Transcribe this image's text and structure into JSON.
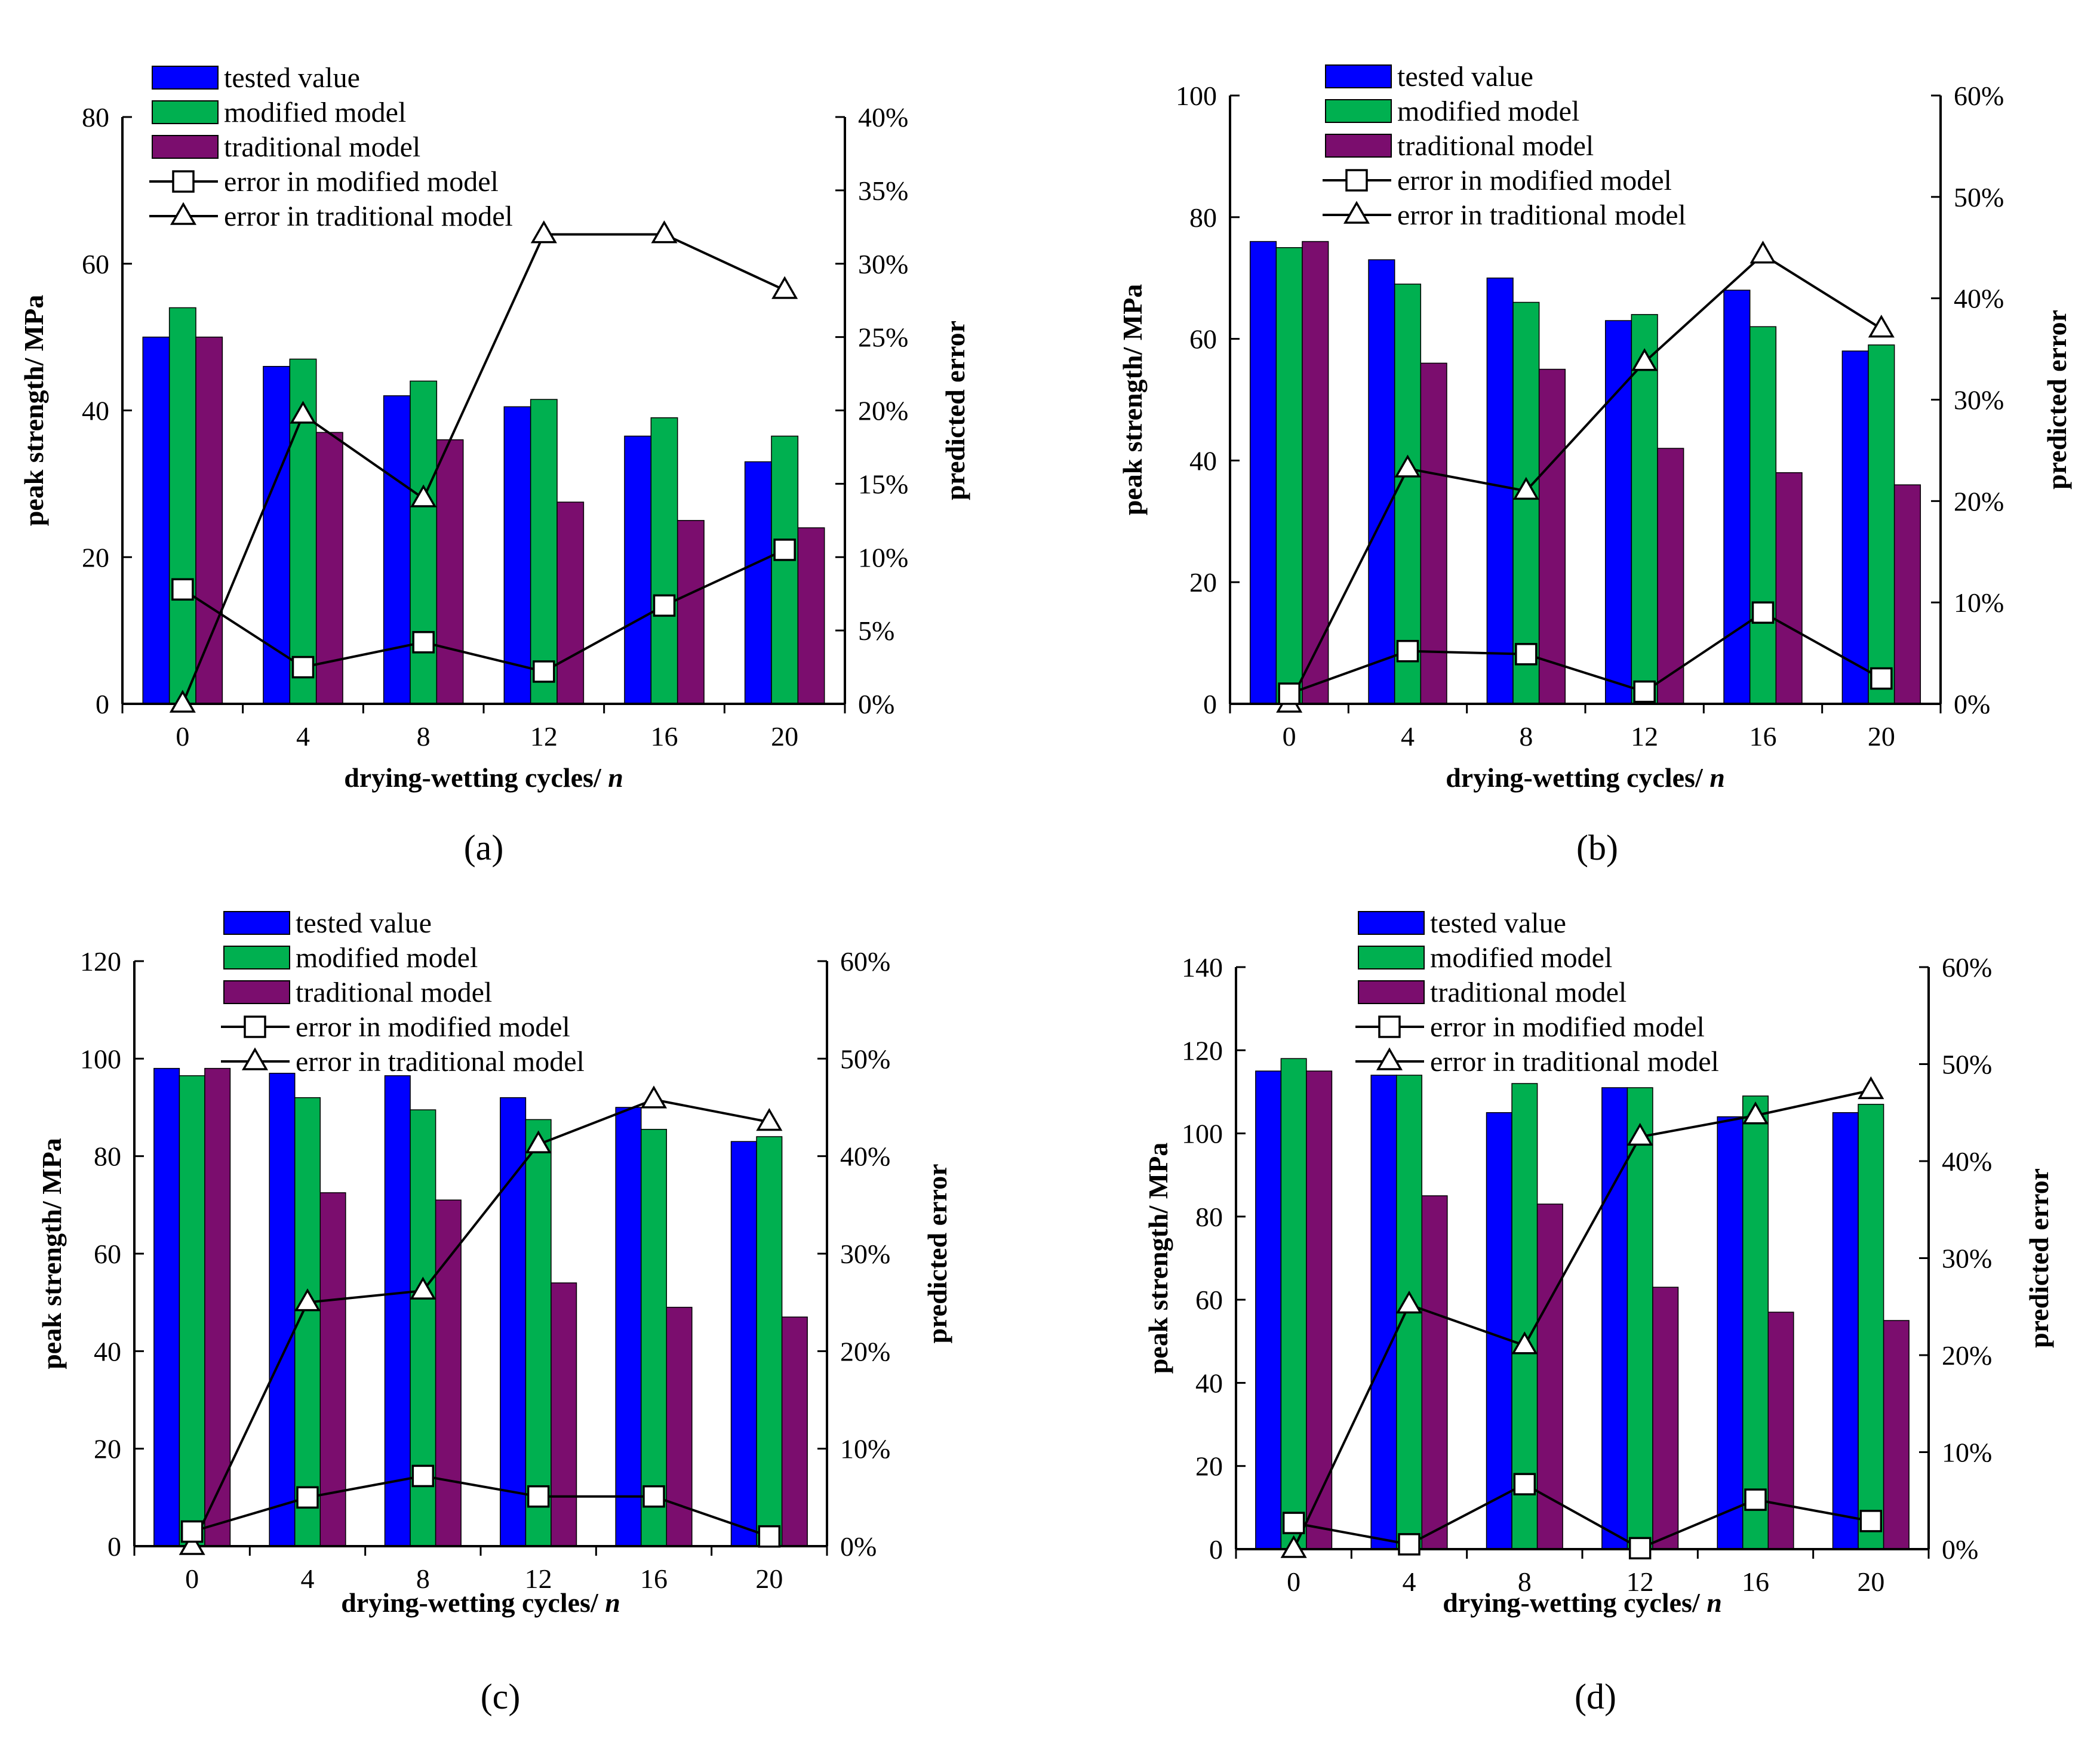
{
  "colors": {
    "tested": "#0000ff",
    "modified": "#00b050",
    "traditional": "#7b0d6e",
    "line": "#000000"
  },
  "legend_labels": {
    "tested": "tested value",
    "modified": "modified model",
    "traditional": "traditional model",
    "err_modified": "error in modified model",
    "err_traditional": "error in traditional model"
  },
  "axis_titles": {
    "x_prefix": "drying-wetting cycles/ ",
    "x_var": "n",
    "y_left": "peak strength/ MPa",
    "y_right": "predicted error"
  },
  "chart_data": [
    {
      "label": "(a)",
      "type": "bar+line",
      "categories": [
        "0",
        "4",
        "8",
        "12",
        "16",
        "20"
      ],
      "ylim": [
        0,
        80
      ],
      "yticks": [
        0,
        20,
        40,
        60,
        80
      ],
      "y2lim": [
        0,
        40
      ],
      "y2ticks": [
        "0%",
        "5%",
        "10%",
        "15%",
        "20%",
        "25%",
        "30%",
        "35%",
        "40%"
      ],
      "series": [
        {
          "name": "tested value",
          "values": [
            50,
            46,
            42,
            40.5,
            36.5,
            33
          ]
        },
        {
          "name": "modified model",
          "values": [
            54,
            47,
            44,
            41.5,
            39,
            36.5
          ]
        },
        {
          "name": "traditional model",
          "values": [
            50,
            37,
            36,
            27.5,
            25,
            24
          ]
        }
      ],
      "errors": [
        {
          "name": "error in modified model",
          "values": [
            7.8,
            2.5,
            4.2,
            2.2,
            6.7,
            10.5
          ]
        },
        {
          "name": "error in traditional model",
          "values": [
            0,
            19.7,
            14,
            32,
            32,
            28.2
          ]
        }
      ]
    },
    {
      "label": "(b)",
      "type": "bar+line",
      "categories": [
        "0",
        "4",
        "8",
        "12",
        "16",
        "20"
      ],
      "ylim": [
        0,
        100
      ],
      "yticks": [
        0,
        20,
        40,
        60,
        80,
        100
      ],
      "y2lim": [
        0,
        60
      ],
      "y2ticks": [
        "0%",
        "10%",
        "20%",
        "30%",
        "40%",
        "50%",
        "60%"
      ],
      "series": [
        {
          "name": "tested value",
          "values": [
            76,
            73,
            70,
            63,
            68,
            58
          ]
        },
        {
          "name": "modified model",
          "values": [
            75,
            69,
            66,
            64,
            62,
            59
          ]
        },
        {
          "name": "traditional model",
          "values": [
            76,
            56,
            55,
            42,
            38,
            36
          ]
        }
      ],
      "errors": [
        {
          "name": "error in modified model",
          "values": [
            1,
            5.2,
            4.9,
            1.2,
            9,
            2.5
          ]
        },
        {
          "name": "error in traditional model",
          "values": [
            0,
            23.2,
            21,
            33.7,
            44.3,
            37
          ]
        }
      ]
    },
    {
      "label": "(c)",
      "type": "bar+line",
      "categories": [
        "0",
        "4",
        "8",
        "12",
        "16",
        "20"
      ],
      "ylim": [
        0,
        120
      ],
      "yticks": [
        0,
        20,
        40,
        60,
        80,
        100,
        120
      ],
      "y2lim": [
        0,
        60
      ],
      "y2ticks": [
        "0%",
        "10%",
        "20%",
        "30%",
        "40%",
        "50%",
        "60%"
      ],
      "series": [
        {
          "name": "tested value",
          "values": [
            98,
            97,
            96.5,
            92,
            90,
            83
          ]
        },
        {
          "name": "modified model",
          "values": [
            96.5,
            92,
            89.5,
            87.5,
            85.5,
            84
          ]
        },
        {
          "name": "traditional model",
          "values": [
            98,
            72.5,
            71,
            54,
            49,
            47
          ]
        }
      ],
      "errors": [
        {
          "name": "error in modified model",
          "values": [
            1.5,
            5,
            7.2,
            5.1,
            5.1,
            1
          ]
        },
        {
          "name": "error in traditional model",
          "values": [
            0,
            25,
            26.2,
            41.2,
            45.8,
            43.5
          ]
        }
      ]
    },
    {
      "label": "(d)",
      "type": "bar+line",
      "categories": [
        "0",
        "4",
        "8",
        "12",
        "16",
        "20"
      ],
      "ylim": [
        0,
        140
      ],
      "yticks": [
        0,
        20,
        40,
        60,
        80,
        100,
        120,
        140
      ],
      "y2lim": [
        0,
        60
      ],
      "y2ticks": [
        "0%",
        "10%",
        "20%",
        "30%",
        "40%",
        "50%",
        "60%"
      ],
      "series": [
        {
          "name": "tested value",
          "values": [
            115,
            114,
            105,
            111,
            104,
            105
          ]
        },
        {
          "name": "modified model",
          "values": [
            118,
            114,
            112,
            111,
            109,
            107
          ]
        },
        {
          "name": "traditional model",
          "values": [
            115,
            85,
            83,
            63,
            57,
            55
          ]
        }
      ],
      "errors": [
        {
          "name": "error in modified model",
          "values": [
            2.7,
            0.5,
            6.7,
            0.1,
            5.1,
            2.9
          ]
        },
        {
          "name": "error in traditional model",
          "values": [
            0,
            25.2,
            21,
            42.5,
            44.7,
            47.3
          ]
        }
      ]
    }
  ]
}
